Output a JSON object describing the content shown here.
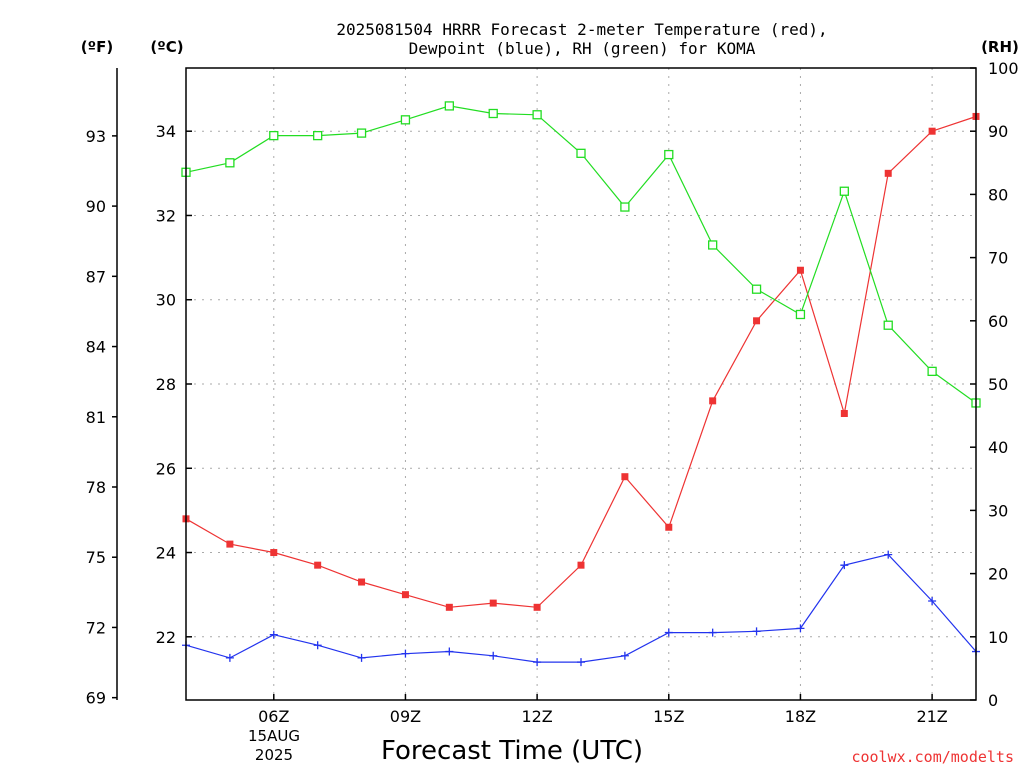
{
  "chart_data": {
    "type": "line",
    "title_line1": "2025081504 HRRR Forecast 2-meter Temperature (red),",
    "title_line2": "Dewpoint (blue), RH (green) for KOMA",
    "xlabel": "Forecast Time (UTC)",
    "unit_f": "(ºF)",
    "unit_c": "(ºC)",
    "unit_rh": "(RH)",
    "x_ticks": [
      6,
      9,
      12,
      15,
      18,
      21
    ],
    "x_tick_labels": [
      "06Z",
      "09Z",
      "12Z",
      "15Z",
      "18Z",
      "21Z"
    ],
    "date_label_line1": "15AUG",
    "date_label_line2": "2025",
    "xlim": [
      4,
      22
    ],
    "ylim_c": [
      20.5,
      35.5
    ],
    "c_ticks": [
      22,
      24,
      26,
      28,
      30,
      32,
      34
    ],
    "f_ticks": [
      69,
      72,
      75,
      78,
      81,
      84,
      87,
      90,
      93
    ],
    "ylim_rh": [
      0,
      100
    ],
    "rh_ticks": [
      0,
      10,
      20,
      30,
      40,
      50,
      60,
      70,
      80,
      90,
      100
    ],
    "grid": true,
    "x": [
      4,
      5,
      6,
      7,
      8,
      9,
      10,
      11,
      12,
      13,
      14,
      15,
      16,
      17,
      18,
      19,
      20,
      21,
      22
    ],
    "series": [
      {
        "name": "Temperature",
        "axis": "c",
        "color": "#ee3333",
        "marker": "filled-square",
        "values": [
          24.8,
          24.2,
          24.0,
          23.7,
          23.3,
          23.0,
          22.7,
          22.8,
          22.7,
          23.7,
          25.8,
          24.6,
          27.6,
          29.5,
          30.7,
          27.3,
          33.0,
          34.0,
          34.35
        ]
      },
      {
        "name": "Dewpoint",
        "axis": "c",
        "color": "#2233ee",
        "marker": "plus",
        "values": [
          21.8,
          21.5,
          22.05,
          21.8,
          21.5,
          21.6,
          21.65,
          21.55,
          21.4,
          21.4,
          21.55,
          22.1,
          22.1,
          22.13,
          22.2,
          23.7,
          23.95,
          22.85,
          21.65
        ]
      },
      {
        "name": "RH",
        "axis": "rh",
        "color": "#22dd22",
        "marker": "open-square",
        "values": [
          83.5,
          85.0,
          89.3,
          89.3,
          89.7,
          91.8,
          94.0,
          92.8,
          92.6,
          86.5,
          78.0,
          86.3,
          72.0,
          65.0,
          61.0,
          80.5,
          59.3,
          52.0,
          47.0
        ]
      }
    ]
  },
  "watermark": "coolwx.com/modelts"
}
